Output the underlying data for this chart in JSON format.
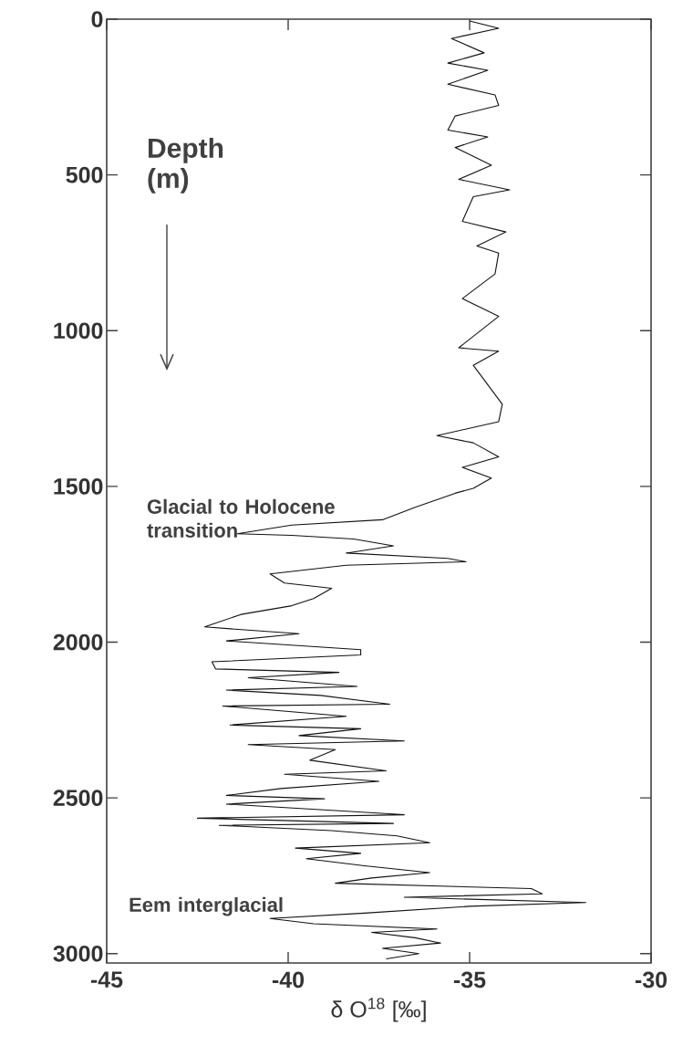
{
  "chart_data": {
    "type": "line",
    "xlabel": "δ O$^{18}$ [‰]",
    "annotations": [
      "Depth (m)",
      "Glacial to Holocene transition",
      "Eem interglacial"
    ],
    "xlim": [
      -45,
      -30
    ],
    "xticks": [
      -45,
      -40,
      -35,
      -30
    ],
    "ylim": [
      3030,
      0
    ],
    "yticks": [
      0,
      500,
      1000,
      1500,
      2000,
      2500,
      3000
    ],
    "grid": false,
    "series": [
      {
        "color": "#111111",
        "x": [
          -35.0,
          -34.2,
          -35.5,
          -34.6,
          -35.6,
          -34.5,
          -35.6,
          -34.3,
          -34.2,
          -35.4,
          -35.6,
          -34.5,
          -35.4,
          -34.4,
          -35.3,
          -33.9,
          -34.9,
          -35.2,
          -34.0,
          -34.8,
          -34.2,
          -34.3,
          -35.2,
          -34.2,
          -35.3,
          -34.2,
          -34.9,
          -34.1,
          -34.2,
          -35.9,
          -34.9,
          -34.2,
          -35.2,
          -34.4,
          -34.9,
          -35.4,
          -36.5,
          -37.4,
          -39.9,
          -41.4,
          -39.9,
          -38.2,
          -37.1,
          -38.4,
          -35.6,
          -35.1,
          -38.4,
          -40.5,
          -40.1,
          -38.8,
          -39.3,
          -39.9,
          -41.3,
          -42.3,
          -39.7,
          -41.7,
          -38.0,
          -38.0,
          -42.1,
          -42.0,
          -38.6,
          -41.1,
          -38.1,
          -41.7,
          -39.1,
          -37.2,
          -41.8,
          -38.4,
          -41.6,
          -38.0,
          -39.7,
          -36.8,
          -41.1,
          -38.7,
          -39.4,
          -37.3,
          -40.1,
          -37.5,
          -40.2,
          -41.7,
          -39.0,
          -41.7,
          -36.8,
          -42.5,
          -37.1,
          -41.9,
          -38.8,
          -37.0,
          -36.1,
          -39.8,
          -38.0,
          -39.5,
          -37.9,
          -36.1,
          -37.7,
          -38.7,
          -33.3,
          -33.0,
          -36.8,
          -31.8,
          -35.0,
          -37.9,
          -40.5,
          -39.3,
          -35.9,
          -37.7,
          -36.5,
          -35.8,
          -37.4,
          -36.4,
          -37.3
        ],
        "values": [
          6,
          29,
          62,
          108,
          141,
          164,
          209,
          243,
          277,
          311,
          356,
          378,
          412,
          469,
          514,
          548,
          570,
          649,
          683,
          728,
          751,
          818,
          897,
          954,
          1055,
          1066,
          1111,
          1236,
          1292,
          1337,
          1360,
          1405,
          1439,
          1473,
          1506,
          1522,
          1567,
          1607,
          1624,
          1652,
          1657,
          1669,
          1691,
          1714,
          1731,
          1742,
          1753,
          1781,
          1810,
          1827,
          1860,
          1883,
          1911,
          1951,
          1973,
          1996,
          2024,
          2041,
          2063,
          2086,
          2097,
          2114,
          2142,
          2154,
          2171,
          2199,
          2205,
          2238,
          2266,
          2278,
          2300,
          2317,
          2329,
          2345,
          2379,
          2413,
          2424,
          2447,
          2470,
          2492,
          2503,
          2520,
          2554,
          2565,
          2582,
          2588,
          2605,
          2622,
          2644,
          2661,
          2678,
          2695,
          2718,
          2740,
          2757,
          2774,
          2791,
          2808,
          2819,
          2836,
          2848,
          2870,
          2887,
          2904,
          2921,
          2932,
          2949,
          2966,
          2983,
          3000,
          3017
        ]
      }
    ]
  }
}
